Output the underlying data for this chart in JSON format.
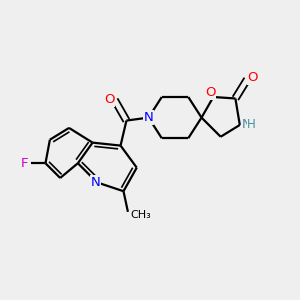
{
  "bg_color": "#efefef",
  "bond_color": "#000000",
  "bond_width": 1.6,
  "figure_size": [
    3.0,
    3.0
  ],
  "dpi": 100,
  "atom_colors": {
    "N": "#0000ff",
    "F": "#cc00cc",
    "O": "#ff0000",
    "NH": "#4a8fa0",
    "C": "#000000"
  }
}
